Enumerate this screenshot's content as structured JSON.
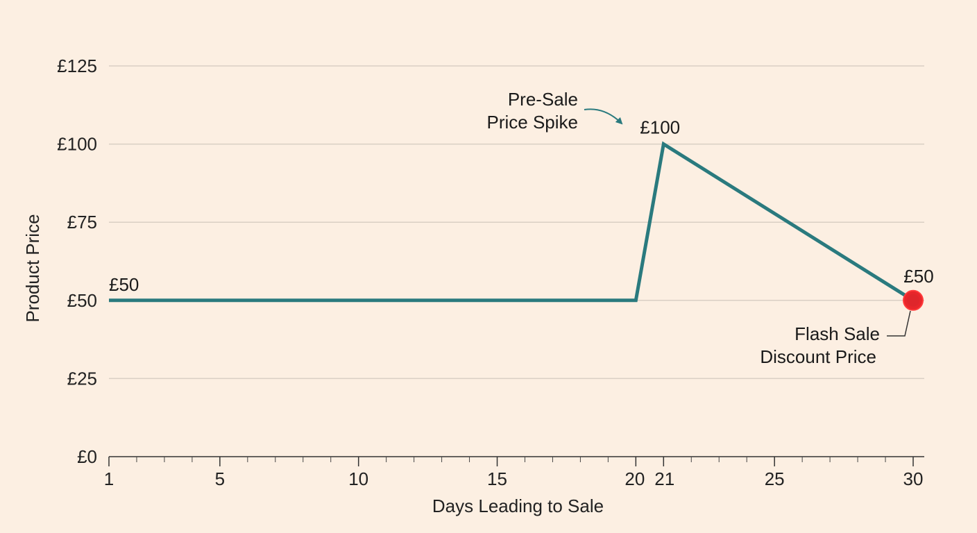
{
  "chart_data": {
    "type": "line",
    "title": "",
    "xlabel": "Days Leading to Sale",
    "ylabel": "Product Price",
    "xlim": [
      1,
      30
    ],
    "ylim": [
      0,
      125
    ],
    "x_ticks_major": [
      1,
      5,
      10,
      15,
      20,
      21,
      25,
      30
    ],
    "x_ticks_minor_step": 1,
    "y_ticks": [
      {
        "value": 0,
        "label": "£0"
      },
      {
        "value": 25,
        "label": "£25"
      },
      {
        "value": 50,
        "label": "£50"
      },
      {
        "value": 75,
        "label": "£75"
      },
      {
        "value": 100,
        "label": "£100"
      },
      {
        "value": 125,
        "label": "£125"
      }
    ],
    "grid": "horizontal",
    "series": [
      {
        "color": "#2a7a7e",
        "points": [
          {
            "x": 1,
            "y": 50
          },
          {
            "x": 20,
            "y": 50
          },
          {
            "x": 21,
            "y": 100
          },
          {
            "x": 30,
            "y": 50
          }
        ]
      }
    ],
    "data_labels": [
      {
        "x": 1,
        "y": 50,
        "text": "£50"
      },
      {
        "x": 21,
        "y": 100,
        "text": "£100"
      },
      {
        "x": 30,
        "y": 50,
        "text": "£50"
      }
    ],
    "annotations": [
      {
        "lines": [
          "Pre-Sale",
          "Price Spike"
        ],
        "target": {
          "x": 21,
          "y": 100
        }
      },
      {
        "lines": [
          "Flash Sale",
          "Discount Price"
        ],
        "target": {
          "x": 30,
          "y": 50
        }
      }
    ],
    "highlight_point": {
      "x": 30,
      "y": 50,
      "color": "#e8262b"
    }
  }
}
